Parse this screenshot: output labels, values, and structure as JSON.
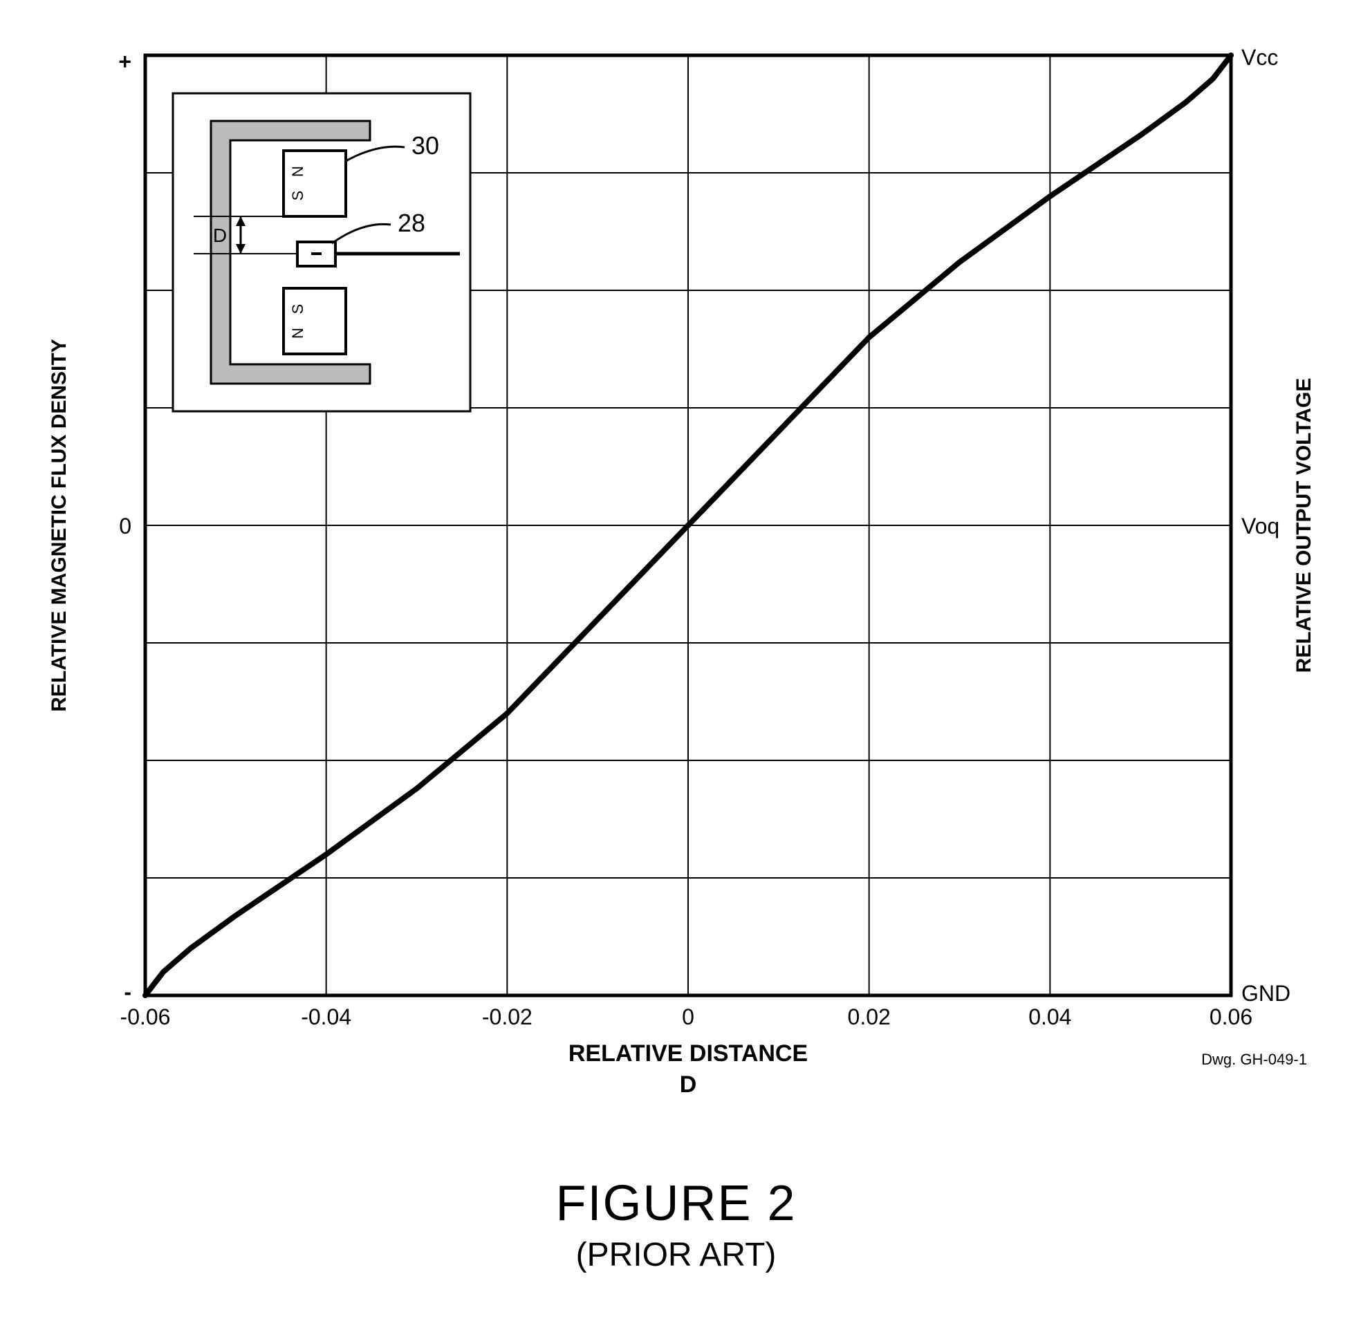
{
  "chart": {
    "type": "line",
    "x_axis": {
      "label_line1": "RELATIVE DISTANCE",
      "label_line2": "D",
      "ticks": [
        -0.06,
        -0.04,
        -0.02,
        0,
        0.02,
        0.04,
        0.06
      ],
      "tick_labels": [
        "-0.06",
        "-0.04",
        "-0.02",
        "0",
        "0.02",
        "0.04",
        "0.06"
      ],
      "xlim": [
        -0.06,
        0.06
      ],
      "label_fontsize": 34,
      "tick_fontsize": 32
    },
    "y_left": {
      "label": "RELATIVE MAGNETIC FLUX DENSITY",
      "top_label": "+",
      "mid_label": "0",
      "bot_label": "-",
      "label_fontsize": 30,
      "tick_fontsize": 32
    },
    "y_right": {
      "label": "RELATIVE OUTPUT VOLTAGE",
      "top_label": "Vcc",
      "mid_label": "Voq",
      "bot_label": "GND",
      "label_fontsize": 30,
      "tick_fontsize": 32
    },
    "grid": {
      "vlines": [
        -0.06,
        -0.04,
        -0.02,
        0,
        0.02,
        0.04,
        0.06
      ],
      "nhoriz": 8,
      "color": "#000000",
      "weight": 2
    },
    "border_weight": 5,
    "curve": {
      "color": "#000000",
      "weight": 8,
      "points_x": [
        -0.06,
        -0.058,
        -0.055,
        -0.05,
        -0.04,
        -0.03,
        -0.02,
        -0.01,
        0,
        0.01,
        0.02,
        0.03,
        0.04,
        0.05,
        0.055,
        0.058,
        0.06
      ],
      "points_y": [
        -1.0,
        -0.95,
        -0.9,
        -0.83,
        -0.7,
        -0.56,
        -0.4,
        -0.2,
        0.0,
        0.2,
        0.4,
        0.56,
        0.7,
        0.83,
        0.9,
        0.95,
        1.0
      ]
    },
    "inset": {
      "box_fill": "#ffffff",
      "box_stroke": "#000000",
      "box_stroke_w": 3,
      "yoke_fill": "#bbbbbb",
      "yoke_stroke": "#000000",
      "magnet_fill": "#ffffff",
      "labels": {
        "top_N": "N",
        "top_S": "S",
        "bot_N": "N",
        "bot_S": "S",
        "D": "D",
        "ref30": "30",
        "ref28": "28"
      },
      "ref_fontsize": 36,
      "NS_fontsize": 22
    },
    "drawing_no": "Dwg. GH-049-1",
    "drawing_no_fontsize": 22,
    "background_color": "#ffffff"
  },
  "caption": {
    "title": "FIGURE 2",
    "subtitle": "(PRIOR ART)",
    "title_fontsize": 72,
    "subtitle_fontsize": 48
  }
}
